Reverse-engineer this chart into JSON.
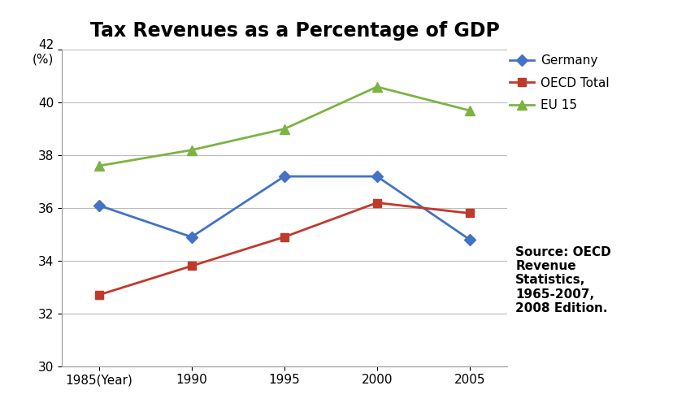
{
  "title": "Tax Revenues as a Percentage of GDP",
  "years": [
    1985,
    1990,
    1995,
    2000,
    2005
  ],
  "ylim": [
    30,
    42
  ],
  "yticks": [
    30,
    32,
    34,
    36,
    38,
    40,
    42
  ],
  "series": [
    {
      "label": "Germany",
      "values": [
        36.1,
        34.9,
        37.2,
        37.2,
        34.8
      ],
      "color": "#4472C4",
      "marker": "D",
      "linewidth": 2.0,
      "markersize": 7
    },
    {
      "label": "OECD Total",
      "values": [
        32.7,
        33.8,
        34.9,
        36.2,
        35.8
      ],
      "color": "#C0392B",
      "marker": "s",
      "linewidth": 2.0,
      "markersize": 7
    },
    {
      "label": "EU 15",
      "values": [
        37.6,
        38.2,
        39.0,
        40.6,
        39.7
      ],
      "color": "#7CB342",
      "marker": "^",
      "linewidth": 2.0,
      "markersize": 8
    }
  ],
  "source_text": "Source: OECD\nRevenue\nStatistics,\n1965-2007,\n2008 Edition.",
  "background_color": "#FFFFFF",
  "grid_color": "#BBBBBB",
  "title_fontsize": 17,
  "tick_fontsize": 11,
  "legend_fontsize": 11,
  "source_fontsize": 11
}
